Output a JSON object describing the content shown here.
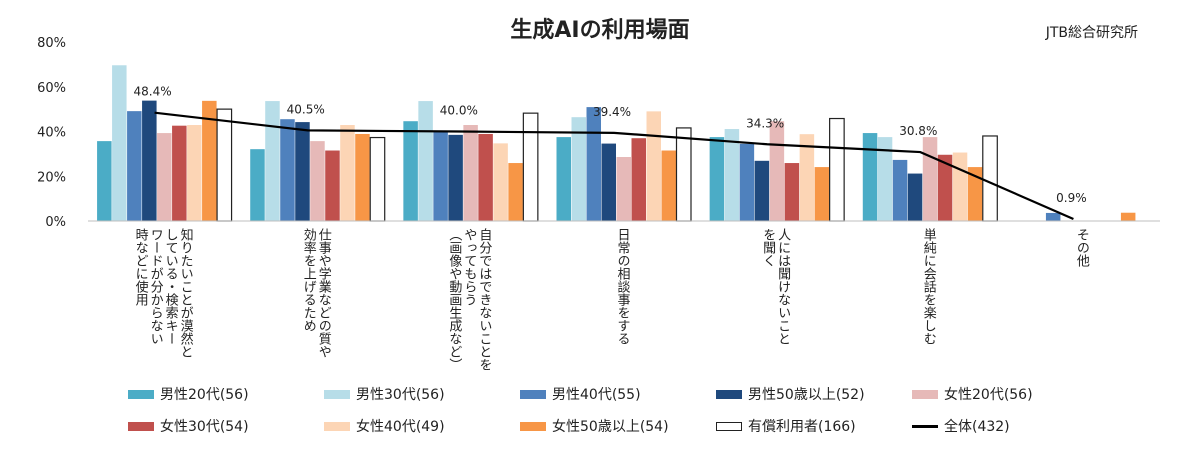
{
  "title": "生成AIの利用場面",
  "source": "JTB総合研究所",
  "chart_data": {
    "type": "bar",
    "title": "生成AIの利用場面",
    "ylim": [
      0,
      80
    ],
    "yticks": [
      "0%",
      "20%",
      "40%",
      "60%",
      "80%"
    ],
    "categories": [
      "知りたいことが漠然としている・検索キーワードが分からない時などに使用",
      "仕事や学業などの質や効率を上げるため",
      "自分ではできないことをやってもらう（画像や動画生成など）",
      "日常の相談事をする",
      "人には聞けないことを聞く",
      "単純に会話を楽しむ",
      "その他"
    ],
    "category_lines": [
      [
        "知りたいことが漠然と",
        "している・検索キー",
        "ワードが分からない",
        "時などに使用"
      ],
      [
        "仕事や学業などの質や",
        "効率を上げるため"
      ],
      [
        "自分ではできないことを",
        "やってもらう",
        "（画像や動画生成など）"
      ],
      [
        "日常の相談事をする"
      ],
      [
        "人には聞けないこと",
        "を聞く"
      ],
      [
        "単純に会話を楽しむ"
      ],
      [
        "その他"
      ]
    ],
    "series": [
      {
        "name": "男性20代(56)",
        "color": "#4bacc6",
        "values": [
          35.7,
          32.1,
          44.6,
          37.5,
          37.5,
          39.3,
          0
        ]
      },
      {
        "name": "男性30代(56)",
        "color": "#b7dde8",
        "values": [
          69.6,
          53.6,
          53.6,
          46.4,
          41.1,
          37.5,
          0
        ]
      },
      {
        "name": "男性40代(55)",
        "color": "#4f81bd",
        "values": [
          49.1,
          45.5,
          40.0,
          50.9,
          34.5,
          27.3,
          3.6
        ]
      },
      {
        "name": "男性50歳以上(52)",
        "color": "#1f497d",
        "values": [
          53.8,
          44.2,
          38.5,
          34.6,
          26.9,
          21.2,
          0
        ]
      },
      {
        "name": "女性20代(56)",
        "color": "#e6b9b8",
        "values": [
          39.3,
          35.7,
          42.9,
          28.6,
          44.6,
          37.5,
          0
        ]
      },
      {
        "name": "女性30代(54)",
        "color": "#c0504d",
        "values": [
          42.6,
          31.5,
          38.9,
          37.0,
          25.9,
          29.6,
          0
        ]
      },
      {
        "name": "女性40代(49)",
        "color": "#fcd5b5",
        "values": [
          42.9,
          42.9,
          34.7,
          49.0,
          38.8,
          30.6,
          0
        ]
      },
      {
        "name": "女性50歳以上(54)",
        "color": "#f79646",
        "values": [
          53.7,
          38.9,
          25.9,
          31.5,
          24.1,
          24.1,
          3.7
        ]
      },
      {
        "name": "有償利用者(166)",
        "color": "#ffffff",
        "stroke": "#222222",
        "values": [
          50.0,
          37.3,
          48.2,
          41.6,
          45.8,
          38.0,
          0
        ]
      }
    ],
    "line": {
      "name": "全体(432)",
      "color": "#000000",
      "values": [
        48.4,
        40.5,
        40.0,
        39.4,
        34.3,
        30.8,
        0.9
      ]
    },
    "line_labels": [
      "48.4%",
      "40.5%",
      "40.0%",
      "39.4%",
      "34.3%",
      "30.8%",
      "0.9%"
    ]
  }
}
